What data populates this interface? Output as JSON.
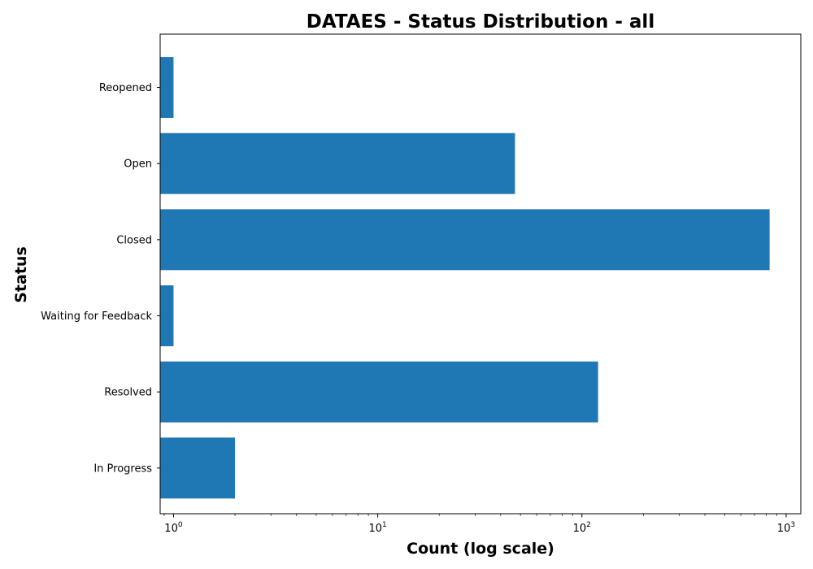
{
  "chart_data": {
    "type": "bar",
    "orientation": "horizontal",
    "title": "DATAES - Status Distribution - all",
    "xlabel": "Count (log scale)",
    "ylabel": "Status",
    "xscale": "log",
    "xlim": [
      0.86,
      1180
    ],
    "x_ticks": [
      {
        "value": 1,
        "base": "10",
        "exp": "0"
      },
      {
        "value": 10,
        "base": "10",
        "exp": "1"
      },
      {
        "value": 100,
        "base": "10",
        "exp": "2"
      },
      {
        "value": 1000,
        "base": "10",
        "exp": "3"
      }
    ],
    "categories": [
      "Reopened",
      "Open",
      "Closed",
      "Waiting for Feedback",
      "Resolved",
      "In Progress"
    ],
    "values": [
      1,
      47,
      830,
      1,
      120,
      2
    ],
    "bar_color": "#1f77b4",
    "grid": false,
    "legend": "none"
  }
}
